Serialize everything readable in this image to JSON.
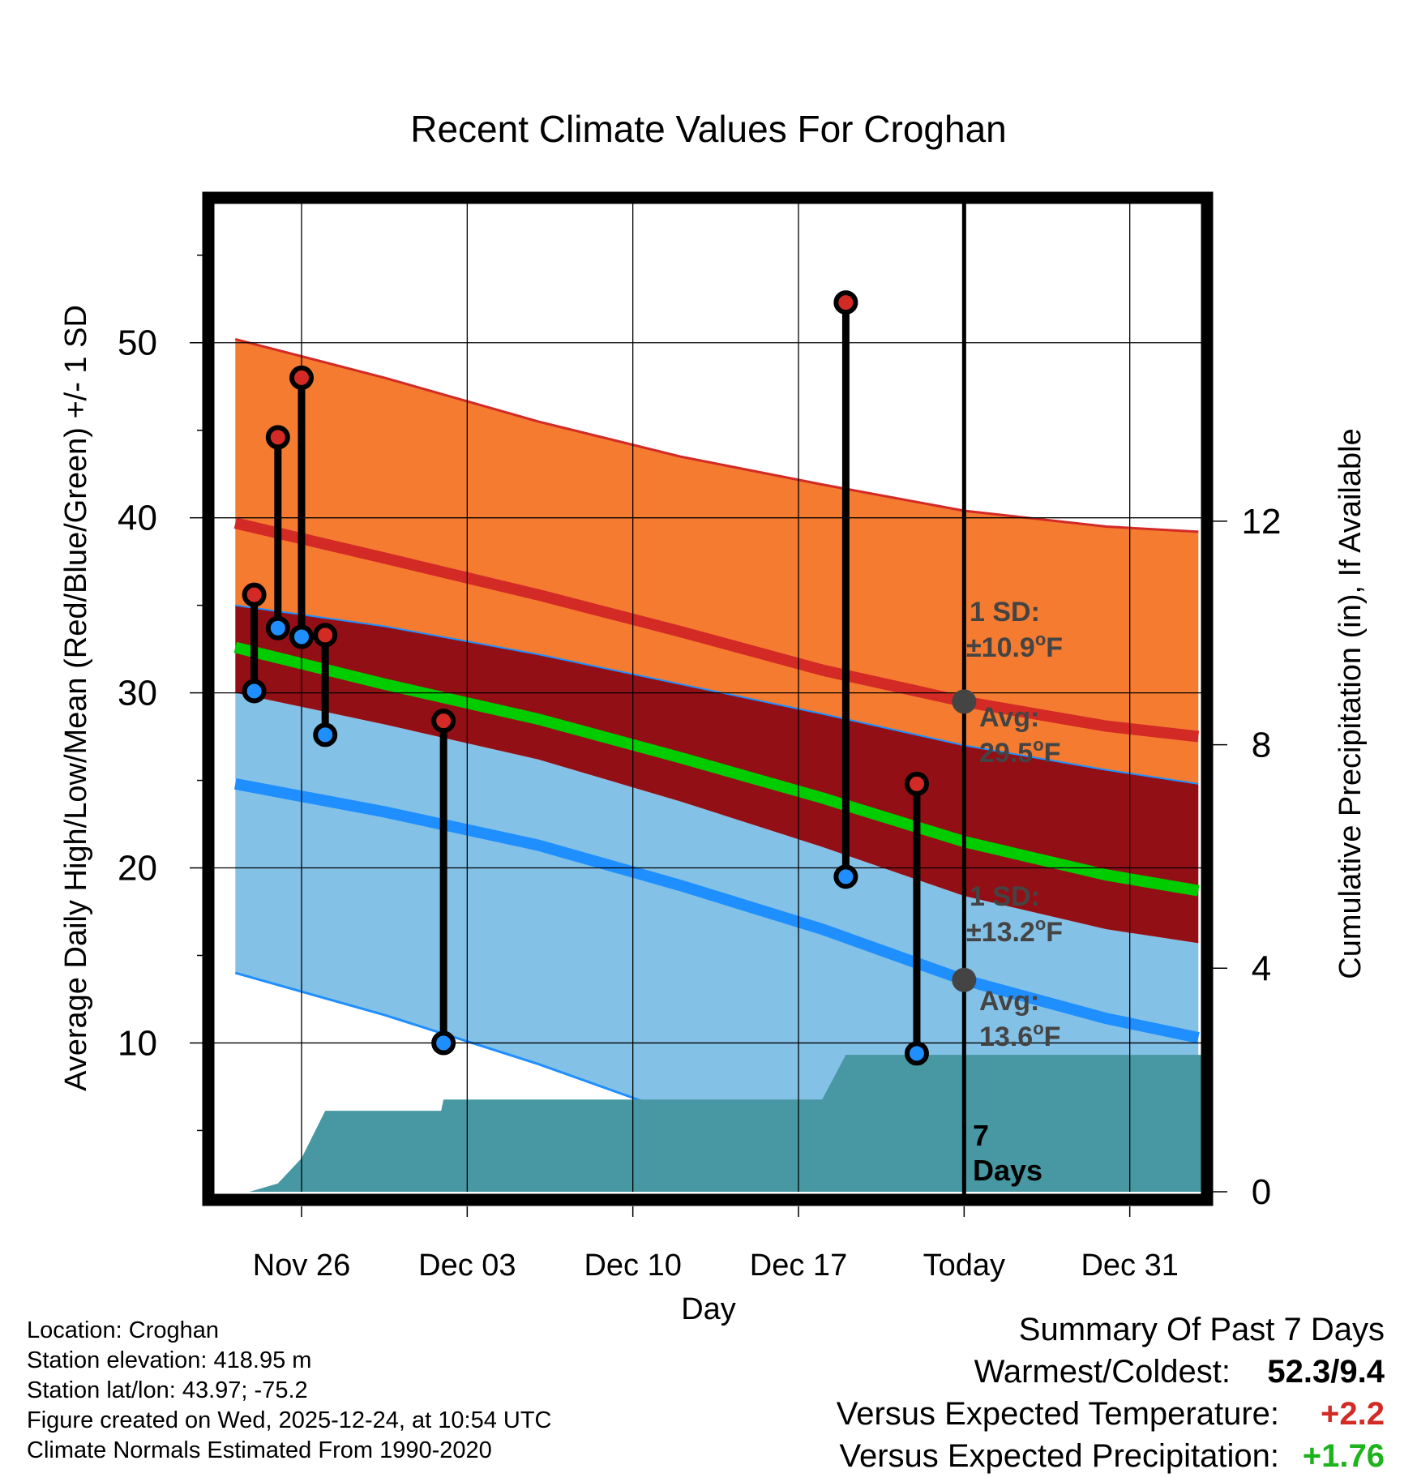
{
  "chart_data": {
    "type": "line",
    "title": "Recent Climate Values For Croghan",
    "xlabel": "Day",
    "ylabel": "Average Daily High/Low/Mean (Red/Blue/Green) +/- 1 SD",
    "y2label": "Cumulative Precipitation (in), If Available",
    "xlim": [
      -3.7,
      38.3
    ],
    "ylim": [
      1.5,
      58
    ],
    "y2lim": [
      0,
      17.7
    ],
    "xticks": [
      {
        "day": 0,
        "label": "Nov 26"
      },
      {
        "day": 7,
        "label": "Dec 03"
      },
      {
        "day": 14,
        "label": "Dec 10"
      },
      {
        "day": 21,
        "label": "Dec 17"
      },
      {
        "day": 28,
        "label": "Today"
      },
      {
        "day": 35,
        "label": "Dec 31"
      }
    ],
    "yticks": [
      10,
      20,
      30,
      40,
      50
    ],
    "y2ticks": [
      0,
      4,
      8,
      12
    ],
    "today_day": 28,
    "normals": {
      "x": [
        -2.8,
        3.5,
        10,
        16,
        22,
        28,
        34,
        37.9
      ],
      "high_mean": [
        39.7,
        37.7,
        35.6,
        33.5,
        31.3,
        29.5,
        28.1,
        27.5
      ],
      "high_plus_sd": [
        50.2,
        48.0,
        45.5,
        43.5,
        41.9,
        40.4,
        39.5,
        39.2
      ],
      "high_minus_sd": [
        35.0,
        33.8,
        32.2,
        30.5,
        28.8,
        27.0,
        25.6,
        24.8
      ],
      "low_mean": [
        24.8,
        23.2,
        21.3,
        19.0,
        16.5,
        13.6,
        11.4,
        10.3
      ],
      "low_plus_sd": [
        30.0,
        28.2,
        26.2,
        23.8,
        21.2,
        18.4,
        16.5,
        15.7
      ],
      "low_minus_sd": [
        14.0,
        11.6,
        8.8,
        5.9,
        2.9,
        0.4,
        -1.8,
        -2.9
      ],
      "mean": [
        32.6,
        30.5,
        28.5,
        26.3,
        24.0,
        21.5,
        19.6,
        18.7
      ]
    },
    "observations": [
      {
        "day": -2,
        "high": 35.6,
        "low": 30.1
      },
      {
        "day": -1,
        "high": 44.6,
        "low": 33.7
      },
      {
        "day": 0,
        "high": 48.0,
        "low": 33.2
      },
      {
        "day": 1,
        "high": 33.3,
        "low": 27.6
      },
      {
        "day": 6,
        "high": 28.4,
        "low": 10.0
      },
      {
        "day": 23,
        "high": 52.3,
        "low": 19.5
      },
      {
        "day": 26,
        "high": 24.8,
        "low": 9.4
      }
    ],
    "precipitation": {
      "x": [
        -3.7,
        -2.2,
        -1,
        0,
        1,
        2,
        3,
        5,
        5.9,
        6,
        7,
        10,
        14,
        17,
        19,
        21,
        22,
        23,
        24,
        28,
        30,
        34,
        38.3
      ],
      "values": [
        0,
        0,
        0.15,
        0.6,
        1.45,
        1.45,
        1.45,
        1.45,
        1.45,
        1.65,
        1.65,
        1.65,
        1.65,
        1.65,
        1.65,
        1.65,
        1.65,
        2.45,
        2.45,
        2.45,
        2.45,
        2.45,
        2.45
      ]
    },
    "annotations": {
      "high_sd_label": "1 SD:",
      "high_sd_value": "±10.9",
      "high_avg_label": "Avg:",
      "high_avg_value": "29.5",
      "low_sd_label": "1 SD:",
      "low_sd_value": "±13.2",
      "low_avg_label": "Avg:",
      "low_avg_value": "13.6",
      "degree_symbol": "o",
      "unit": "F",
      "window_count": "7",
      "window_unit": "Days"
    },
    "colors": {
      "high_band": "#f47b30",
      "high_line": "#d32a26",
      "mid_band": "#930f16",
      "low_band": "#83c1e6",
      "low_line": "#1f8fff",
      "mean_line": "#00cc00",
      "precip": "#4798a2",
      "marker": "#444444",
      "annotation": "#444444"
    }
  },
  "info": {
    "location": "Location: Croghan",
    "elevation": "Station elevation: 418.95 m",
    "latlon": "Station lat/lon: 43.97; -75.2",
    "created": "Figure created on Wed, 2025-12-24, at 10:54 UTC",
    "normals": "Climate Normals Estimated From 1990-2020"
  },
  "summary": {
    "title": "Summary Of Past 7 Days",
    "warmest_label": "Warmest/Coldest:",
    "warmest_value": "52.3/9.4",
    "temp_label": "Versus Expected Temperature:",
    "temp_value": "+2.2",
    "temp_color": "#d32a26",
    "precip_label": "Versus Expected Precipitation:",
    "precip_value": "+1.76",
    "precip_color": "#1db31d"
  }
}
